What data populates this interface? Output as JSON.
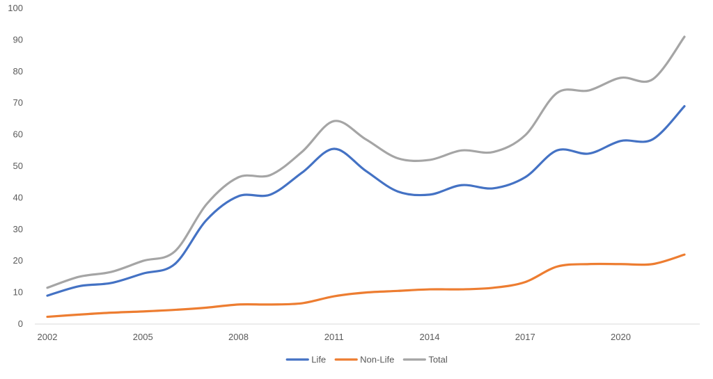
{
  "chart_data": {
    "type": "line",
    "title": "",
    "xlabel": "",
    "ylabel": "",
    "x": [
      2002,
      2003,
      2004,
      2005,
      2006,
      2007,
      2008,
      2009,
      2010,
      2011,
      2012,
      2013,
      2014,
      2015,
      2016,
      2017,
      2018,
      2019,
      2020,
      2021,
      2022
    ],
    "x_tick_labels": [
      "2002",
      "2005",
      "2008",
      "2011",
      "2014",
      "2017",
      "2020"
    ],
    "y_tick_labels": [
      "0",
      "10",
      "20",
      "30",
      "40",
      "50",
      "60",
      "70",
      "80",
      "90",
      "100"
    ],
    "ylim": [
      0,
      100
    ],
    "grid": false,
    "legend_position": "bottom",
    "series": [
      {
        "name": "Life",
        "color": "#4472C4",
        "values": [
          9,
          12,
          13,
          16,
          19,
          33,
          40.5,
          41,
          48,
          55.5,
          48.5,
          42,
          41,
          44,
          43,
          46.5,
          55,
          54,
          58,
          58.5,
          69
        ]
      },
      {
        "name": "Non-Life",
        "color": "#ED7D31",
        "values": [
          2.3,
          3,
          3.6,
          4,
          4.5,
          5.2,
          6.2,
          6.2,
          6.6,
          8.8,
          10,
          10.5,
          11,
          11,
          11.5,
          13.3,
          18.2,
          19,
          19,
          19,
          22
        ]
      },
      {
        "name": "Total",
        "color": "#A5A5A5",
        "values": [
          11.5,
          15,
          16.5,
          20,
          23,
          38,
          46.5,
          47.2,
          54.6,
          64.3,
          58.5,
          52.5,
          52,
          55,
          54.5,
          59.8,
          73.2,
          74,
          78,
          77.5,
          91
        ]
      }
    ]
  }
}
